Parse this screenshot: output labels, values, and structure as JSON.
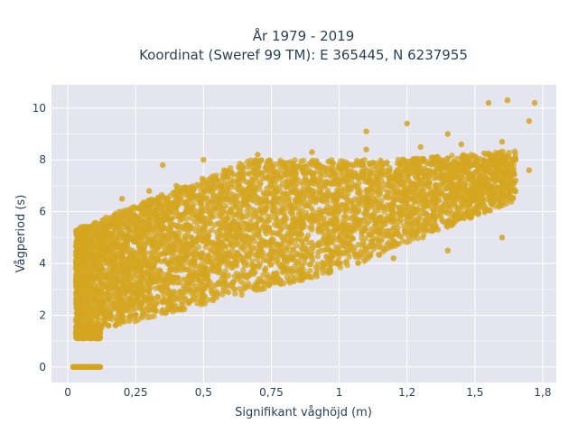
{
  "chart_data": {
    "type": "scatter",
    "title": "År 1979 - 2019",
    "subtitle": "Koordinat (Sweref 99 TM): E 365445, N 6237955",
    "xlabel": "Signifikant våghöjd (m)",
    "ylabel": "Vågperiod (s)",
    "xlim": [
      -0.06,
      1.8
    ],
    "ylim": [
      -0.6,
      10.9
    ],
    "xticks": [
      0,
      0.25,
      0.5,
      0.75,
      1,
      1.25,
      1.5,
      1.75
    ],
    "xtick_labels": [
      "0",
      "0,25",
      "0,5",
      "0,75",
      "1",
      "1,2",
      "1,5",
      "1,8"
    ],
    "yticks": [
      0,
      2,
      4,
      6,
      8,
      10
    ],
    "ytick_labels": [
      "0",
      "2",
      "4",
      "6",
      "8",
      "10"
    ],
    "grid": true,
    "legend": "none",
    "marker_color": "#d4a520",
    "background_color": "#e5e5f0",
    "series": [
      {
        "values_note": "",
        "x": [
          0.03,
          0.05,
          0.07,
          0.09,
          0.11,
          0.12,
          0.04,
          0.06,
          0.08,
          0.1,
          0.05,
          0.07,
          0.1,
          0.15,
          0.2,
          0.05,
          0.08,
          0.12,
          0.18,
          0.25,
          0.3,
          0.06,
          0.1,
          0.15,
          0.22,
          0.3,
          0.4,
          0.5,
          0.08,
          0.12,
          0.2,
          0.3,
          0.45,
          0.6,
          0.75,
          0.1,
          0.15,
          0.25,
          0.35,
          0.5,
          0.65,
          0.8,
          1.0,
          1.2,
          1.4,
          1.6,
          0.2,
          0.3,
          0.4,
          0.55,
          0.7,
          0.9,
          1.1,
          1.3,
          1.5,
          1.65,
          0.35,
          0.5,
          0.7,
          0.9,
          1.1,
          1.3,
          1.45,
          1.6,
          1.7,
          0.6,
          0.8,
          1.0,
          1.2,
          1.4,
          1.55,
          1.65,
          1.7,
          0.3,
          0.5,
          0.75,
          1.0,
          1.25,
          0.4,
          0.6,
          0.85,
          1.1,
          1.35,
          1.6,
          1.72,
          1.62,
          1.55,
          1.4,
          1.25,
          1.1
        ],
        "y": [
          0,
          0,
          0,
          0,
          0,
          0,
          1.2,
          1.2,
          1.3,
          1.3,
          2.0,
          2.5,
          3.0,
          3.5,
          4.0,
          4.5,
          4.8,
          5.2,
          5.5,
          5.8,
          6.2,
          3.5,
          4.0,
          4.5,
          5.0,
          5.5,
          6.0,
          6.5,
          2.0,
          2.3,
          2.6,
          3.0,
          3.5,
          4.0,
          4.5,
          1.5,
          1.6,
          2.0,
          2.5,
          3.0,
          3.5,
          3.8,
          4.0,
          4.2,
          4.5,
          5.0,
          6.5,
          6.8,
          7.0,
          7.2,
          7.4,
          7.5,
          7.6,
          7.7,
          7.8,
          8.0,
          7.8,
          8.0,
          8.2,
          8.3,
          8.4,
          8.5,
          8.6,
          8.7,
          9.5,
          5.5,
          5.8,
          6.0,
          6.3,
          6.6,
          6.9,
          7.2,
          7.6,
          3.0,
          3.6,
          4.2,
          5.0,
          5.8,
          5.0,
          5.3,
          5.6,
          6.0,
          6.5,
          7.2,
          10.2,
          10.3,
          10.2,
          9.0,
          9.4,
          9.1
        ]
      }
    ]
  }
}
